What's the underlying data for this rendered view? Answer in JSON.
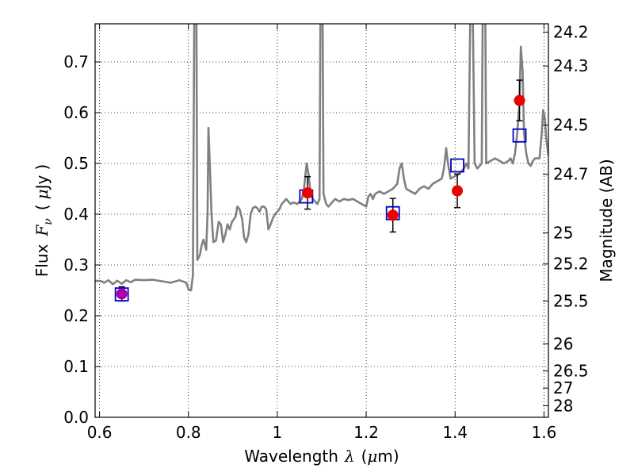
{
  "chart_data": {
    "type": "scatter",
    "xlabel": {
      "text": "Wavelength",
      "symbol": "λ",
      "unit_open": "(",
      "unit_mu": "μ",
      "unit_rest": "m)"
    },
    "ylabel": {
      "text": "Flux",
      "symbol": "F",
      "subscript": "ν",
      "unit_open": "(",
      "unit_mu": "μ",
      "unit_rest": "Jy",
      "unit_close": ")"
    },
    "y2label": "Magnitude (AB)",
    "xlim": [
      0.59,
      1.61
    ],
    "ylim": [
      0.0,
      0.775
    ],
    "grid": true,
    "x_ticks": [
      {
        "v": 0.6,
        "label": "0.6"
      },
      {
        "v": 0.8,
        "label": "0.8"
      },
      {
        "v": 1.0,
        "label": "1"
      },
      {
        "v": 1.2,
        "label": "1.2"
      },
      {
        "v": 1.4,
        "label": "1.4"
      },
      {
        "v": 1.6,
        "label": "1.6"
      }
    ],
    "y_ticks": [
      {
        "v": 0.0,
        "label": "0.0"
      },
      {
        "v": 0.1,
        "label": "0.1"
      },
      {
        "v": 0.2,
        "label": "0.2"
      },
      {
        "v": 0.3,
        "label": "0.3"
      },
      {
        "v": 0.4,
        "label": "0.4"
      },
      {
        "v": 0.5,
        "label": "0.5"
      },
      {
        "v": 0.6,
        "label": "0.6"
      },
      {
        "v": 0.7,
        "label": "0.7"
      }
    ],
    "mag_ticks": [
      {
        "mag": 24.2,
        "label": "24.2"
      },
      {
        "mag": 24.3,
        "label": "24.3"
      },
      {
        "mag": 24.5,
        "label": "24.5"
      },
      {
        "mag": 24.7,
        "label": "24.7"
      },
      {
        "mag": 25.0,
        "label": "25"
      },
      {
        "mag": 25.2,
        "label": "25.2"
      },
      {
        "mag": 25.5,
        "label": "25.5"
      },
      {
        "mag": 26.0,
        "label": "26"
      },
      {
        "mag": 26.5,
        "label": "26.5"
      },
      {
        "mag": 27.0,
        "label": "27"
      },
      {
        "mag": 28.0,
        "label": "28"
      }
    ],
    "series": [
      {
        "kind": "line",
        "color": "#808080",
        "points": [
          [
            0.59,
            0.269
          ],
          [
            0.605,
            0.268
          ],
          [
            0.61,
            0.265
          ],
          [
            0.62,
            0.27
          ],
          [
            0.63,
            0.262
          ],
          [
            0.64,
            0.269
          ],
          [
            0.65,
            0.263
          ],
          [
            0.66,
            0.27
          ],
          [
            0.67,
            0.266
          ],
          [
            0.68,
            0.271
          ],
          [
            0.7,
            0.27
          ],
          [
            0.72,
            0.271
          ],
          [
            0.74,
            0.268
          ],
          [
            0.76,
            0.265
          ],
          [
            0.78,
            0.27
          ],
          [
            0.795,
            0.265
          ],
          [
            0.8,
            0.252
          ],
          [
            0.806,
            0.25
          ],
          [
            0.81,
            0.28
          ],
          [
            0.813,
            0.78
          ],
          [
            0.818,
            0.78
          ],
          [
            0.82,
            0.31
          ],
          [
            0.826,
            0.32
          ],
          [
            0.83,
            0.34
          ],
          [
            0.834,
            0.35
          ],
          [
            0.84,
            0.33
          ],
          [
            0.843,
            0.4
          ],
          [
            0.845,
            0.57
          ],
          [
            0.848,
            0.5
          ],
          [
            0.852,
            0.4
          ],
          [
            0.856,
            0.345
          ],
          [
            0.862,
            0.348
          ],
          [
            0.868,
            0.385
          ],
          [
            0.873,
            0.38
          ],
          [
            0.878,
            0.345
          ],
          [
            0.883,
            0.36
          ],
          [
            0.888,
            0.38
          ],
          [
            0.893,
            0.37
          ],
          [
            0.898,
            0.385
          ],
          [
            0.902,
            0.39
          ],
          [
            0.906,
            0.395
          ],
          [
            0.91,
            0.415
          ],
          [
            0.915,
            0.41
          ],
          [
            0.921,
            0.39
          ],
          [
            0.925,
            0.355
          ],
          [
            0.93,
            0.345
          ],
          [
            0.935,
            0.36
          ],
          [
            0.94,
            0.4
          ],
          [
            0.945,
            0.412
          ],
          [
            0.95,
            0.415
          ],
          [
            0.955,
            0.412
          ],
          [
            0.96,
            0.405
          ],
          [
            0.965,
            0.415
          ],
          [
            0.97,
            0.415
          ],
          [
            0.975,
            0.41
          ],
          [
            0.98,
            0.37
          ],
          [
            0.985,
            0.38
          ],
          [
            0.99,
            0.392
          ],
          [
            0.995,
            0.4
          ],
          [
            1.0,
            0.405
          ],
          [
            1.005,
            0.41
          ],
          [
            1.01,
            0.42
          ],
          [
            1.015,
            0.425
          ],
          [
            1.02,
            0.43
          ],
          [
            1.025,
            0.425
          ],
          [
            1.03,
            0.42
          ],
          [
            1.035,
            0.423
          ],
          [
            1.04,
            0.422
          ],
          [
            1.045,
            0.42
          ],
          [
            1.05,
            0.425
          ],
          [
            1.055,
            0.43
          ],
          [
            1.06,
            0.45
          ],
          [
            1.066,
            0.5
          ],
          [
            1.07,
            0.48
          ],
          [
            1.075,
            0.44
          ],
          [
            1.08,
            0.43
          ],
          [
            1.085,
            0.425
          ],
          [
            1.09,
            0.42
          ],
          [
            1.095,
            0.43
          ],
          [
            1.097,
            0.78
          ],
          [
            1.102,
            0.78
          ],
          [
            1.104,
            0.44
          ],
          [
            1.11,
            0.42
          ],
          [
            1.115,
            0.415
          ],
          [
            1.12,
            0.42
          ],
          [
            1.13,
            0.43
          ],
          [
            1.14,
            0.425
          ],
          [
            1.15,
            0.43
          ],
          [
            1.16,
            0.428
          ],
          [
            1.17,
            0.43
          ],
          [
            1.18,
            0.425
          ],
          [
            1.19,
            0.42
          ],
          [
            1.2,
            0.415
          ],
          [
            1.205,
            0.435
          ],
          [
            1.21,
            0.44
          ],
          [
            1.215,
            0.43
          ],
          [
            1.22,
            0.44
          ],
          [
            1.23,
            0.445
          ],
          [
            1.24,
            0.44
          ],
          [
            1.25,
            0.445
          ],
          [
            1.26,
            0.45
          ],
          [
            1.27,
            0.46
          ],
          [
            1.275,
            0.49
          ],
          [
            1.28,
            0.5
          ],
          [
            1.285,
            0.47
          ],
          [
            1.29,
            0.45
          ],
          [
            1.3,
            0.445
          ],
          [
            1.31,
            0.44
          ],
          [
            1.32,
            0.45
          ],
          [
            1.33,
            0.455
          ],
          [
            1.34,
            0.45
          ],
          [
            1.35,
            0.46
          ],
          [
            1.36,
            0.465
          ],
          [
            1.37,
            0.47
          ],
          [
            1.375,
            0.49
          ],
          [
            1.38,
            0.53
          ],
          [
            1.384,
            0.5
          ],
          [
            1.39,
            0.47
          ],
          [
            1.4,
            0.475
          ],
          [
            1.41,
            0.48
          ],
          [
            1.42,
            0.49
          ],
          [
            1.425,
            0.5
          ],
          [
            1.43,
            0.49
          ],
          [
            1.434,
            0.78
          ],
          [
            1.44,
            0.78
          ],
          [
            1.444,
            0.5
          ],
          [
            1.45,
            0.49
          ],
          [
            1.46,
            0.5
          ],
          [
            1.462,
            0.78
          ],
          [
            1.468,
            0.78
          ],
          [
            1.47,
            0.5
          ],
          [
            1.48,
            0.505
          ],
          [
            1.49,
            0.51
          ],
          [
            1.5,
            0.505
          ],
          [
            1.51,
            0.5
          ],
          [
            1.52,
            0.505
          ],
          [
            1.525,
            0.51
          ],
          [
            1.53,
            0.5
          ],
          [
            1.535,
            0.52
          ],
          [
            1.54,
            0.56
          ],
          [
            1.545,
            0.62
          ],
          [
            1.548,
            0.73
          ],
          [
            1.552,
            0.68
          ],
          [
            1.555,
            0.56
          ],
          [
            1.56,
            0.52
          ],
          [
            1.565,
            0.5
          ],
          [
            1.57,
            0.495
          ],
          [
            1.575,
            0.505
          ],
          [
            1.58,
            0.51
          ],
          [
            1.59,
            0.51
          ],
          [
            1.595,
            0.56
          ],
          [
            1.598,
            0.605
          ],
          [
            1.602,
            0.59
          ],
          [
            1.605,
            0.55
          ],
          [
            1.61,
            0.515
          ]
        ]
      },
      {
        "kind": "markers",
        "marker": "open-square",
        "color": "#0000cc",
        "points": [
          [
            0.65,
            0.242
          ],
          [
            1.065,
            0.435
          ],
          [
            1.26,
            0.402
          ],
          [
            1.405,
            0.496
          ],
          [
            1.545,
            0.555
          ]
        ]
      },
      {
        "kind": "markers",
        "marker": "filled-circle",
        "color": "#ee0000",
        "points": [
          [
            1.068,
            0.442
          ],
          [
            1.26,
            0.398
          ],
          [
            1.405,
            0.446
          ],
          [
            1.545,
            0.624
          ]
        ],
        "errors": [
          [
            1.068,
            0.442,
            0.032
          ],
          [
            1.26,
            0.398,
            0.033
          ],
          [
            1.405,
            0.446,
            0.033
          ],
          [
            1.545,
            0.624,
            0.04
          ]
        ]
      },
      {
        "kind": "markers",
        "marker": "filled-circle",
        "color": "#aa00aa",
        "points": [
          [
            0.65,
            0.243
          ]
        ],
        "errors": [
          [
            0.65,
            0.243,
            0.014
          ]
        ]
      }
    ]
  }
}
